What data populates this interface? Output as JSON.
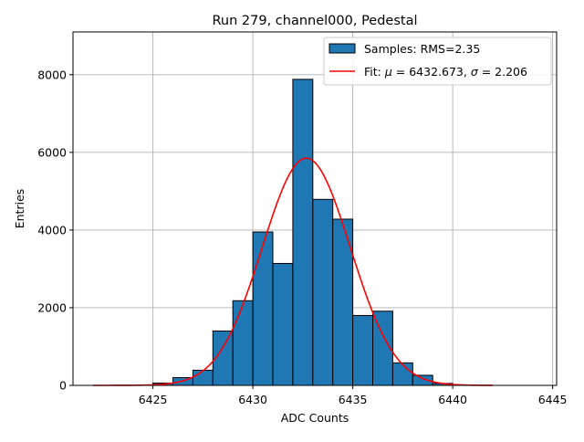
{
  "chart_data": {
    "type": "bar",
    "title": "Run 279, channel000, Pedestal",
    "xlabel": "ADC Counts",
    "ylabel": "Entries",
    "xlim": [
      6421,
      6445.2
    ],
    "ylim": [
      0,
      9100
    ],
    "xticks": [
      6425,
      6430,
      6435,
      6440,
      6445
    ],
    "yticks": [
      0,
      2000,
      4000,
      6000,
      8000
    ],
    "grid": true,
    "legend_position": "top-right",
    "bar_color": "#1f77b4",
    "fit_color": "#ff0000",
    "bins": [
      {
        "left": 6425,
        "right": 6426,
        "count": 60
      },
      {
        "left": 6426,
        "right": 6427,
        "count": 200
      },
      {
        "left": 6427,
        "right": 6428,
        "count": 390
      },
      {
        "left": 6428,
        "right": 6429,
        "count": 1400
      },
      {
        "left": 6429,
        "right": 6430,
        "count": 2180
      },
      {
        "left": 6430,
        "right": 6431,
        "count": 3950
      },
      {
        "left": 6431,
        "right": 6432,
        "count": 3140
      },
      {
        "left": 6432,
        "right": 6433,
        "count": 7880
      },
      {
        "left": 6433,
        "right": 6434,
        "count": 4790
      },
      {
        "left": 6434,
        "right": 6435,
        "count": 4280
      },
      {
        "left": 6435,
        "right": 6436,
        "count": 1800
      },
      {
        "left": 6436,
        "right": 6437,
        "count": 1910
      },
      {
        "left": 6437,
        "right": 6438,
        "count": 580
      },
      {
        "left": 6438,
        "right": 6439,
        "count": 260
      },
      {
        "left": 6439,
        "right": 6440,
        "count": 50
      }
    ],
    "fit": {
      "type": "gaussian",
      "mu": 6432.673,
      "sigma": 2.206,
      "amplitude": 5850,
      "x_range": [
        6422,
        6442
      ]
    },
    "legend": [
      {
        "label": "Samples: RMS=2.35",
        "kind": "bar"
      },
      {
        "label_prefix": "Fit: ",
        "mu_symbol": "μ",
        "mu_text": " = 6432.673, ",
        "sigma_symbol": "σ",
        "sigma_text": " = 2.206",
        "kind": "line"
      }
    ]
  }
}
